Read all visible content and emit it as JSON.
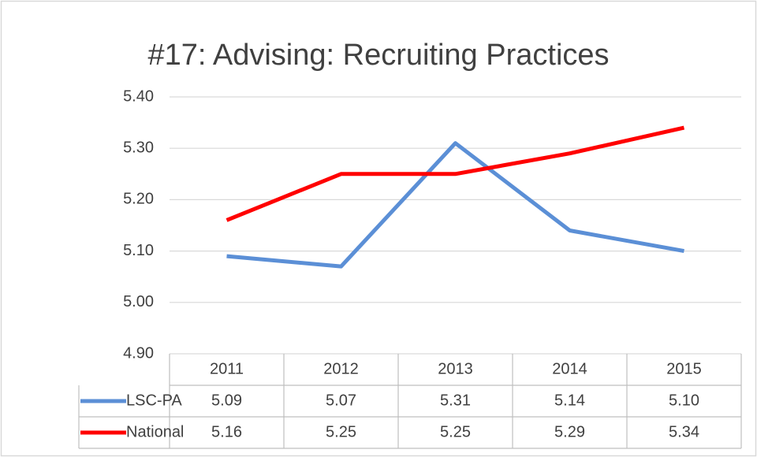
{
  "chart_data": {
    "type": "line",
    "title": "#17: Advising: Recruiting Practices",
    "categories": [
      "2011",
      "2012",
      "2013",
      "2014",
      "2015"
    ],
    "series": [
      {
        "name": "LSC-PA",
        "color": "#5b8fd6",
        "values": [
          5.09,
          5.07,
          5.31,
          5.14,
          5.1
        ],
        "value_labels": [
          "5.09",
          "5.07",
          "5.31",
          "5.14",
          "5.10"
        ]
      },
      {
        "name": "National",
        "color": "#ff0000",
        "values": [
          5.16,
          5.25,
          5.25,
          5.29,
          5.34
        ],
        "value_labels": [
          "5.16",
          "5.25",
          "5.25",
          "5.29",
          "5.34"
        ]
      }
    ],
    "ylim": [
      4.9,
      5.4
    ],
    "yticks": [
      {
        "value": 4.9,
        "label": "4.90"
      },
      {
        "value": 5.0,
        "label": "5.00"
      },
      {
        "value": 5.1,
        "label": "5.10"
      },
      {
        "value": 5.2,
        "label": "5.20"
      },
      {
        "value": 5.3,
        "label": "5.30"
      },
      {
        "value": 5.4,
        "label": "5.40"
      }
    ],
    "grid": true
  }
}
